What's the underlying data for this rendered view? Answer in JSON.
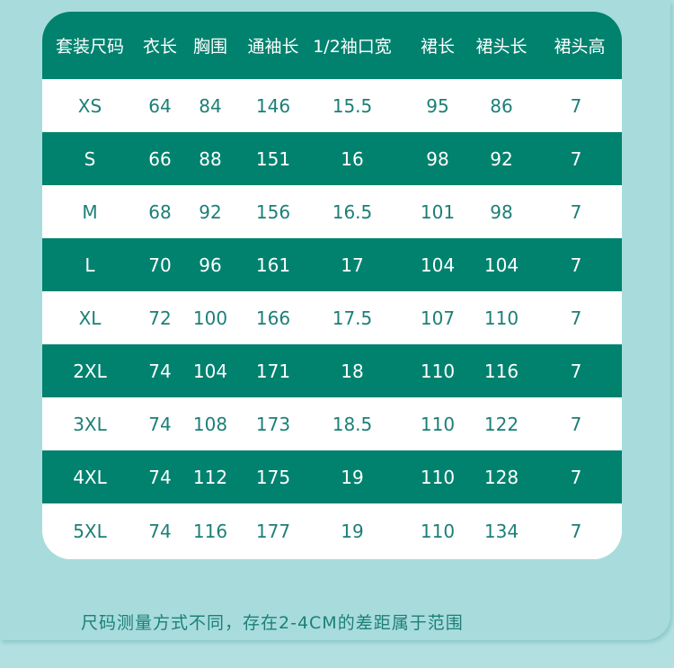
{
  "table": {
    "header": [
      "套装尺码",
      "衣长",
      "胸围",
      "通袖长",
      "1/2袖口宽",
      "裙长",
      "裙头长",
      "裙头高"
    ],
    "rows": [
      [
        "XS",
        "64",
        "84",
        "146",
        "15.5",
        "95",
        "86",
        "7"
      ],
      [
        "S",
        "66",
        "88",
        "151",
        "16",
        "98",
        "92",
        "7"
      ],
      [
        "M",
        "68",
        "92",
        "156",
        "16.5",
        "101",
        "98",
        "7"
      ],
      [
        "L",
        "70",
        "96",
        "161",
        "17",
        "104",
        "104",
        "7"
      ],
      [
        "XL",
        "72",
        "100",
        "166",
        "17.5",
        "107",
        "110",
        "7"
      ],
      [
        "2XL",
        "74",
        "104",
        "171",
        "18",
        "110",
        "116",
        "7"
      ],
      [
        "3XL",
        "74",
        "108",
        "173",
        "18.5",
        "110",
        "122",
        "7"
      ],
      [
        "4XL",
        "74",
        "112",
        "175",
        "19",
        "110",
        "128",
        "7"
      ],
      [
        "5XL",
        "74",
        "116",
        "177",
        "19",
        "110",
        "134",
        "7"
      ]
    ]
  },
  "footer": {
    "note": "尺码测量方式不同，存在2-4CM的差距属于范围"
  }
}
